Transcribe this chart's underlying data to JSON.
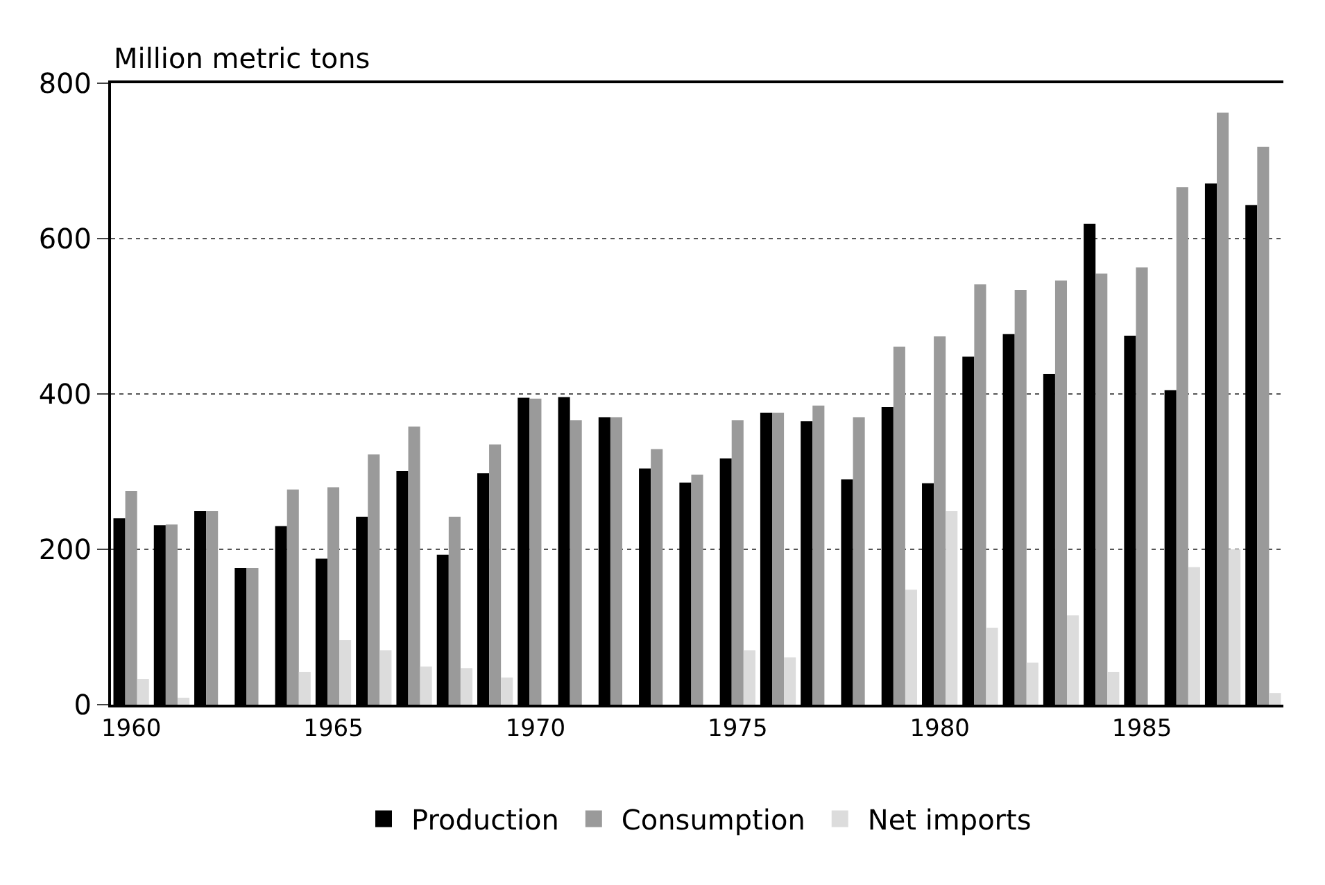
{
  "chart_data": {
    "type": "bar",
    "ylabel": "Million metric tons",
    "categories": [
      "1960",
      null,
      null,
      null,
      null,
      "1965",
      null,
      null,
      null,
      null,
      "1970",
      null,
      null,
      null,
      null,
      "1975",
      null,
      null,
      null,
      null,
      "1980",
      null,
      null,
      null,
      null,
      "1985",
      null,
      null,
      null
    ],
    "series": [
      {
        "name": "Production",
        "color": "#000000",
        "values": [
          240,
          231,
          249,
          176,
          230,
          188,
          242,
          301,
          193,
          298,
          395,
          396,
          370,
          304,
          286,
          317,
          376,
          365,
          290,
          383,
          285,
          448,
          477,
          426,
          619,
          475,
          405,
          671,
          643
        ]
      },
      {
        "name": "Consumption",
        "color": "#9a9a9a",
        "values": [
          275,
          232,
          249,
          176,
          277,
          280,
          322,
          358,
          242,
          335,
          394,
          366,
          370,
          329,
          296,
          366,
          376,
          385,
          370,
          461,
          474,
          541,
          534,
          546,
          555,
          563,
          666,
          762,
          718
        ]
      },
      {
        "name": "Net imports",
        "color": "#dcdcdc",
        "values": [
          33,
          9,
          0,
          0,
          42,
          83,
          70,
          49,
          47,
          35,
          0,
          0,
          0,
          0,
          0,
          70,
          61,
          0,
          0,
          148,
          249,
          99,
          54,
          115,
          42,
          0,
          177,
          200,
          15
        ]
      }
    ],
    "ylim": [
      0,
      800
    ],
    "yticks": [
      0,
      200,
      400,
      600,
      800
    ],
    "grid": "y",
    "legend": "bottom"
  }
}
